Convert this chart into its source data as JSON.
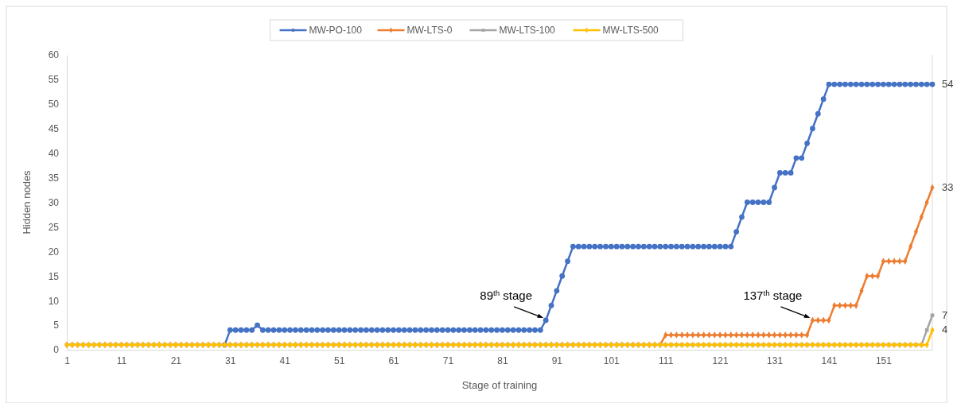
{
  "chart_data": {
    "type": "line",
    "xlabel": "Stage of training",
    "ylabel": "Hidden nodes",
    "x": [
      1,
      2,
      3,
      4,
      5,
      6,
      7,
      8,
      9,
      10,
      11,
      12,
      13,
      14,
      15,
      16,
      17,
      18,
      19,
      20,
      21,
      22,
      23,
      24,
      25,
      26,
      27,
      28,
      29,
      30,
      31,
      32,
      33,
      34,
      35,
      36,
      37,
      38,
      39,
      40,
      41,
      42,
      43,
      44,
      45,
      46,
      47,
      48,
      49,
      50,
      51,
      52,
      53,
      54,
      55,
      56,
      57,
      58,
      59,
      60,
      61,
      62,
      63,
      64,
      65,
      66,
      67,
      68,
      69,
      70,
      71,
      72,
      73,
      74,
      75,
      76,
      77,
      78,
      79,
      80,
      81,
      82,
      83,
      84,
      85,
      86,
      87,
      88,
      89,
      90,
      91,
      92,
      93,
      94,
      95,
      96,
      97,
      98,
      99,
      100,
      101,
      102,
      103,
      104,
      105,
      106,
      107,
      108,
      109,
      110,
      111,
      112,
      113,
      114,
      115,
      116,
      117,
      118,
      119,
      120,
      121,
      122,
      123,
      124,
      125,
      126,
      127,
      128,
      129,
      130,
      131,
      132,
      133,
      134,
      135,
      136,
      137,
      138,
      139,
      140,
      141,
      142,
      143,
      144,
      145,
      146,
      147,
      148,
      149,
      150,
      151,
      152,
      153,
      154,
      155,
      156,
      157,
      158,
      159,
      160
    ],
    "xlim": [
      1,
      160
    ],
    "xticks": [
      1,
      11,
      21,
      31,
      41,
      51,
      61,
      71,
      81,
      91,
      101,
      111,
      121,
      131,
      141,
      151
    ],
    "ylim": [
      0,
      60
    ],
    "yticks": [
      0,
      5,
      10,
      15,
      20,
      25,
      30,
      35,
      40,
      45,
      50,
      55,
      60
    ],
    "grid": false,
    "legend": "top",
    "series": [
      {
        "name": "MW-PO-100",
        "color": "#4472c4",
        "marker": "circle",
        "values": [
          null,
          null,
          null,
          null,
          null,
          null,
          null,
          null,
          null,
          null,
          null,
          null,
          null,
          null,
          null,
          null,
          null,
          null,
          null,
          null,
          null,
          null,
          null,
          null,
          null,
          null,
          null,
          null,
          null,
          1,
          4,
          4,
          4,
          4,
          4,
          5,
          4,
          4,
          4,
          4,
          4,
          4,
          4,
          4,
          4,
          4,
          4,
          4,
          4,
          4,
          4,
          4,
          4,
          4,
          4,
          4,
          4,
          4,
          4,
          4,
          4,
          4,
          4,
          4,
          4,
          4,
          4,
          4,
          4,
          4,
          4,
          4,
          4,
          4,
          4,
          4,
          4,
          4,
          4,
          4,
          4,
          4,
          4,
          4,
          4,
          4,
          4,
          4,
          6,
          9,
          12,
          15,
          18,
          21,
          21,
          21,
          21,
          21,
          21,
          21,
          21,
          21,
          21,
          21,
          21,
          21,
          21,
          21,
          21,
          21,
          21,
          21,
          21,
          21,
          21,
          21,
          21,
          21,
          21,
          21,
          21,
          21,
          21,
          24,
          27,
          30,
          30,
          30,
          30,
          30,
          33,
          36,
          36,
          36,
          39,
          39,
          42,
          45,
          48,
          51,
          54,
          54,
          54,
          54,
          54,
          54,
          54,
          54,
          54,
          54,
          54,
          54,
          54,
          54,
          54,
          54,
          54,
          54,
          54,
          54
        ],
        "value_labels": [
          null,
          null,
          null,
          null,
          null,
          null,
          null,
          null,
          null,
          null,
          null,
          null,
          null,
          null,
          null,
          null,
          null,
          null,
          null,
          null,
          null,
          null,
          null,
          null,
          null,
          null,
          null,
          null,
          null,
          null,
          null,
          null,
          null,
          null,
          null,
          null,
          null,
          null,
          null,
          null,
          null,
          null,
          null,
          null,
          null,
          null,
          null,
          null,
          null,
          null,
          null,
          null,
          null,
          null,
          null,
          null,
          null,
          null,
          null,
          null,
          null,
          null,
          null,
          null,
          null,
          null,
          null,
          null,
          null,
          null,
          null,
          null,
          null,
          null,
          null,
          null,
          null,
          null,
          null,
          null,
          null,
          null,
          null,
          null,
          null,
          null,
          null,
          null,
          null,
          null,
          null,
          null,
          null,
          null,
          null,
          null,
          null,
          null,
          null,
          null,
          null,
          null,
          null,
          null,
          null,
          null,
          null,
          null,
          null,
          null,
          null,
          null,
          null,
          null,
          null,
          null,
          null,
          null,
          null,
          null,
          null,
          null,
          null,
          null,
          null,
          null,
          null,
          null,
          null,
          null,
          null,
          null,
          null,
          null,
          null,
          null,
          null,
          null,
          null,
          null,
          null,
          null,
          null,
          null,
          null,
          null,
          null,
          null,
          null,
          null,
          null,
          null,
          null,
          null,
          null,
          null,
          null,
          null,
          null,
          "54"
        ]
      },
      {
        "name": "MW-LTS-0",
        "color": "#ed7d31",
        "marker": "diamond",
        "values": [
          1,
          1,
          1,
          1,
          1,
          1,
          1,
          1,
          1,
          1,
          1,
          1,
          1,
          1,
          1,
          1,
          1,
          1,
          1,
          1,
          1,
          1,
          1,
          1,
          1,
          1,
          1,
          1,
          1,
          1,
          1,
          1,
          1,
          1,
          1,
          1,
          1,
          1,
          1,
          1,
          1,
          1,
          1,
          1,
          1,
          1,
          1,
          1,
          1,
          1,
          1,
          1,
          1,
          1,
          1,
          1,
          1,
          1,
          1,
          1,
          1,
          1,
          1,
          1,
          1,
          1,
          1,
          1,
          1,
          1,
          1,
          1,
          1,
          1,
          1,
          1,
          1,
          1,
          1,
          1,
          1,
          1,
          1,
          1,
          1,
          1,
          1,
          1,
          1,
          1,
          1,
          1,
          1,
          1,
          1,
          1,
          1,
          1,
          1,
          1,
          1,
          1,
          1,
          1,
          1,
          1,
          1,
          1,
          1,
          1,
          3,
          3,
          3,
          3,
          3,
          3,
          3,
          3,
          3,
          3,
          3,
          3,
          3,
          3,
          3,
          3,
          3,
          3,
          3,
          3,
          3,
          3,
          3,
          3,
          3,
          3,
          3,
          6,
          6,
          6,
          6,
          9,
          9,
          9,
          9,
          9,
          12,
          15,
          15,
          15,
          18,
          18,
          18,
          18,
          18,
          21,
          24,
          27,
          30,
          33
        ],
        "value_labels": [
          null,
          null,
          null,
          null,
          null,
          null,
          null,
          null,
          null,
          null,
          null,
          null,
          null,
          null,
          null,
          null,
          null,
          null,
          null,
          null,
          null,
          null,
          null,
          null,
          null,
          null,
          null,
          null,
          null,
          null,
          null,
          null,
          null,
          null,
          null,
          null,
          null,
          null,
          null,
          null,
          null,
          null,
          null,
          null,
          null,
          null,
          null,
          null,
          null,
          null,
          null,
          null,
          null,
          null,
          null,
          null,
          null,
          null,
          null,
          null,
          null,
          null,
          null,
          null,
          null,
          null,
          null,
          null,
          null,
          null,
          null,
          null,
          null,
          null,
          null,
          null,
          null,
          null,
          null,
          null,
          null,
          null,
          null,
          null,
          null,
          null,
          null,
          null,
          null,
          null,
          null,
          null,
          null,
          null,
          null,
          null,
          null,
          null,
          null,
          null,
          null,
          null,
          null,
          null,
          null,
          null,
          null,
          null,
          null,
          null,
          null,
          null,
          null,
          null,
          null,
          null,
          null,
          null,
          null,
          null,
          null,
          null,
          null,
          null,
          null,
          null,
          null,
          null,
          null,
          null,
          null,
          null,
          null,
          null,
          null,
          null,
          null,
          null,
          null,
          null,
          null,
          null,
          null,
          null,
          null,
          null,
          null,
          null,
          null,
          null,
          null,
          null,
          null,
          null,
          null,
          null,
          null,
          null,
          null,
          "33"
        ]
      },
      {
        "name": "MW-LTS-100",
        "color": "#a5a5a5",
        "marker": "square",
        "values": [
          1,
          1,
          1,
          1,
          1,
          1,
          1,
          1,
          1,
          1,
          1,
          1,
          1,
          1,
          1,
          1,
          1,
          1,
          1,
          1,
          1,
          1,
          1,
          1,
          1,
          1,
          1,
          1,
          1,
          1,
          1,
          1,
          1,
          1,
          1,
          1,
          1,
          1,
          1,
          1,
          1,
          1,
          1,
          1,
          1,
          1,
          1,
          1,
          1,
          1,
          1,
          1,
          1,
          1,
          1,
          1,
          1,
          1,
          1,
          1,
          1,
          1,
          1,
          1,
          1,
          1,
          1,
          1,
          1,
          1,
          1,
          1,
          1,
          1,
          1,
          1,
          1,
          1,
          1,
          1,
          1,
          1,
          1,
          1,
          1,
          1,
          1,
          1,
          1,
          1,
          1,
          1,
          1,
          1,
          1,
          1,
          1,
          1,
          1,
          1,
          1,
          1,
          1,
          1,
          1,
          1,
          1,
          1,
          1,
          1,
          1,
          1,
          1,
          1,
          1,
          1,
          1,
          1,
          1,
          1,
          1,
          1,
          1,
          1,
          1,
          1,
          1,
          1,
          1,
          1,
          1,
          1,
          1,
          1,
          1,
          1,
          1,
          1,
          1,
          1,
          1,
          1,
          1,
          1,
          1,
          1,
          1,
          1,
          1,
          1,
          1,
          1,
          1,
          1,
          1,
          1,
          1,
          1,
          4,
          7
        ],
        "value_labels": [
          null,
          null,
          null,
          null,
          null,
          null,
          null,
          null,
          null,
          null,
          null,
          null,
          null,
          null,
          null,
          null,
          null,
          null,
          null,
          null,
          null,
          null,
          null,
          null,
          null,
          null,
          null,
          null,
          null,
          null,
          null,
          null,
          null,
          null,
          null,
          null,
          null,
          null,
          null,
          null,
          null,
          null,
          null,
          null,
          null,
          null,
          null,
          null,
          null,
          null,
          null,
          null,
          null,
          null,
          null,
          null,
          null,
          null,
          null,
          null,
          null,
          null,
          null,
          null,
          null,
          null,
          null,
          null,
          null,
          null,
          null,
          null,
          null,
          null,
          null,
          null,
          null,
          null,
          null,
          null,
          null,
          null,
          null,
          null,
          null,
          null,
          null,
          null,
          null,
          null,
          null,
          null,
          null,
          null,
          null,
          null,
          null,
          null,
          null,
          null,
          null,
          null,
          null,
          null,
          null,
          null,
          null,
          null,
          null,
          null,
          null,
          null,
          null,
          null,
          null,
          null,
          null,
          null,
          null,
          null,
          null,
          null,
          null,
          null,
          null,
          null,
          null,
          null,
          null,
          null,
          null,
          null,
          null,
          null,
          null,
          null,
          null,
          null,
          null,
          null,
          null,
          null,
          null,
          null,
          null,
          null,
          null,
          null,
          null,
          null,
          null,
          null,
          null,
          null,
          null,
          null,
          null,
          null,
          null,
          "7"
        ]
      },
      {
        "name": "MW-LTS-500",
        "color": "#ffc000",
        "marker": "diamond",
        "values": [
          1,
          1,
          1,
          1,
          1,
          1,
          1,
          1,
          1,
          1,
          1,
          1,
          1,
          1,
          1,
          1,
          1,
          1,
          1,
          1,
          1,
          1,
          1,
          1,
          1,
          1,
          1,
          1,
          1,
          1,
          1,
          1,
          1,
          1,
          1,
          1,
          1,
          1,
          1,
          1,
          1,
          1,
          1,
          1,
          1,
          1,
          1,
          1,
          1,
          1,
          1,
          1,
          1,
          1,
          1,
          1,
          1,
          1,
          1,
          1,
          1,
          1,
          1,
          1,
          1,
          1,
          1,
          1,
          1,
          1,
          1,
          1,
          1,
          1,
          1,
          1,
          1,
          1,
          1,
          1,
          1,
          1,
          1,
          1,
          1,
          1,
          1,
          1,
          1,
          1,
          1,
          1,
          1,
          1,
          1,
          1,
          1,
          1,
          1,
          1,
          1,
          1,
          1,
          1,
          1,
          1,
          1,
          1,
          1,
          1,
          1,
          1,
          1,
          1,
          1,
          1,
          1,
          1,
          1,
          1,
          1,
          1,
          1,
          1,
          1,
          1,
          1,
          1,
          1,
          1,
          1,
          1,
          1,
          1,
          1,
          1,
          1,
          1,
          1,
          1,
          1,
          1,
          1,
          1,
          1,
          1,
          1,
          1,
          1,
          1,
          1,
          1,
          1,
          1,
          1,
          1,
          1,
          1,
          1,
          4
        ],
        "value_labels": [
          null,
          null,
          null,
          null,
          null,
          null,
          null,
          null,
          null,
          null,
          null,
          null,
          null,
          null,
          null,
          null,
          null,
          null,
          null,
          null,
          null,
          null,
          null,
          null,
          null,
          null,
          null,
          null,
          null,
          null,
          null,
          null,
          null,
          null,
          null,
          null,
          null,
          null,
          null,
          null,
          null,
          null,
          null,
          null,
          null,
          null,
          null,
          null,
          null,
          null,
          null,
          null,
          null,
          null,
          null,
          null,
          null,
          null,
          null,
          null,
          null,
          null,
          null,
          null,
          null,
          null,
          null,
          null,
          null,
          null,
          null,
          null,
          null,
          null,
          null,
          null,
          null,
          null,
          null,
          null,
          null,
          null,
          null,
          null,
          null,
          null,
          null,
          null,
          null,
          null,
          null,
          null,
          null,
          null,
          null,
          null,
          null,
          null,
          null,
          null,
          null,
          null,
          null,
          null,
          null,
          null,
          null,
          null,
          null,
          null,
          null,
          null,
          null,
          null,
          null,
          null,
          null,
          null,
          null,
          null,
          null,
          null,
          null,
          null,
          null,
          null,
          null,
          null,
          null,
          null,
          null,
          null,
          null,
          null,
          null,
          null,
          null,
          null,
          null,
          null,
          null,
          null,
          null,
          null,
          null,
          null,
          null,
          null,
          null,
          null,
          null,
          null,
          null,
          null,
          null,
          null,
          null,
          null,
          null,
          "4"
        ]
      }
    ],
    "annotations": [
      {
        "text": "89$^{th}$ stage",
        "x": 89,
        "y": 6
      },
      {
        "text": "137$^{th}$ stage",
        "x": 138,
        "y": 6
      }
    ]
  }
}
